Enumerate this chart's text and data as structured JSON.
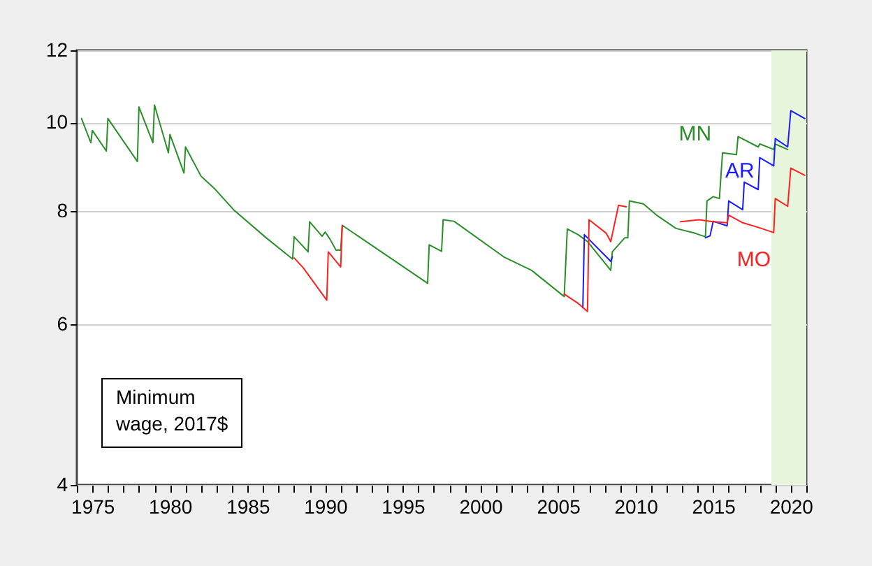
{
  "chart_data": {
    "type": "line",
    "log": "y",
    "grid": "y",
    "xlim": [
      1974,
      2021
    ],
    "ylim": [
      4,
      12
    ],
    "yticks": [
      4,
      6,
      8,
      10,
      12
    ],
    "xticks": [
      {
        "value": 1974,
        "label": null
      },
      1975,
      {
        "value": 1976,
        "label": null
      },
      {
        "value": 1977,
        "label": null
      },
      {
        "value": 1978,
        "label": null
      },
      {
        "value": 1979,
        "label": null
      },
      1980,
      {
        "value": 1981,
        "label": null
      },
      {
        "value": 1982,
        "label": null
      },
      {
        "value": 1983,
        "label": null
      },
      {
        "value": 1984,
        "label": null
      },
      1985,
      {
        "value": 1986,
        "label": null
      },
      {
        "value": 1987,
        "label": null
      },
      {
        "value": 1988,
        "label": null
      },
      {
        "value": 1989,
        "label": null
      },
      1990,
      {
        "value": 1991,
        "label": null
      },
      {
        "value": 1992,
        "label": null
      },
      {
        "value": 1993,
        "label": null
      },
      {
        "value": 1994,
        "label": null
      },
      1995,
      {
        "value": 1996,
        "label": null
      },
      {
        "value": 1997,
        "label": null
      },
      {
        "value": 1998,
        "label": null
      },
      {
        "value": 1999,
        "label": null
      },
      2000,
      {
        "value": 2001,
        "label": null
      },
      {
        "value": 2002,
        "label": null
      },
      {
        "value": 2003,
        "label": null
      },
      {
        "value": 2004,
        "label": null
      },
      2005,
      {
        "value": 2006,
        "label": null
      },
      {
        "value": 2007,
        "label": null
      },
      {
        "value": 2008,
        "label": null
      },
      {
        "value": 2009,
        "label": null
      },
      2010,
      {
        "value": 2011,
        "label": null
      },
      {
        "value": 2012,
        "label": null
      },
      {
        "value": 2013,
        "label": null
      },
      {
        "value": 2014,
        "label": null
      },
      2015,
      {
        "value": 2016,
        "label": null
      },
      {
        "value": 2017,
        "label": null
      },
      {
        "value": 2018,
        "label": null
      },
      {
        "value": 2019,
        "label": null
      },
      2020,
      {
        "value": 2021,
        "label": null
      }
    ],
    "bands": [
      {
        "axis": "x",
        "from": 2018.75,
        "to": 2021,
        "color": "#e6f5dc"
      }
    ],
    "annotations": [
      "Minimum wage, 2017$"
    ],
    "series": [
      {
        "name": "MN",
        "color": "#2a8f2a",
        "x": [
          1974.3,
          1974.9,
          1975.0,
          1975.9,
          1976.0,
          1977.9,
          1978.0,
          1978.9,
          1979.0,
          1979.9,
          1980.0,
          1980.9,
          1981.0,
          1982.0,
          1982.9,
          1984.1,
          1986.2,
          1987.9,
          1988.0,
          1988.9,
          1989.0,
          1989.8,
          1990.0,
          1990.3,
          1990.7,
          1991.0,
          1991.1,
          1996.6,
          1996.7,
          1997.5,
          1997.6,
          1998.3,
          2001.5,
          2003.3,
          2005.4,
          2005.6,
          2006.3,
          2006.9,
          2008.4,
          2008.5,
          2009.3,
          2009.5,
          2009.6,
          2010.5,
          2011.4,
          2012.6,
          2013.8,
          2014.5,
          2014.6,
          2015.0,
          2015.4,
          2015.6,
          2016.5,
          2016.6,
          2017.9,
          2018.0,
          2018.9,
          2019.0,
          2019.8
        ],
        "values": [
          10.1,
          9.5,
          9.8,
          9.3,
          10.1,
          9.06,
          10.4,
          9.5,
          10.45,
          9.26,
          9.7,
          8.8,
          9.4,
          8.73,
          8.45,
          8.02,
          7.47,
          7.08,
          7.49,
          7.21,
          7.78,
          7.5,
          7.58,
          7.45,
          7.24,
          7.24,
          7.71,
          6.66,
          7.34,
          7.22,
          7.82,
          7.79,
          7.12,
          6.88,
          6.44,
          7.64,
          7.53,
          7.4,
          6.88,
          7.21,
          7.47,
          7.47,
          8.2,
          8.14,
          7.9,
          7.65,
          7.56,
          7.49,
          8.2,
          8.29,
          8.25,
          9.26,
          9.22,
          9.65,
          9.4,
          9.47,
          9.34,
          9.47,
          9.34
        ]
      },
      {
        "name": "AR",
        "color": "#1a1aff",
        "x": [
          2006.6,
          2006.7,
          2008.4,
          2008.5,
          2011.5,
          2014.5,
          2014.8,
          2015.0,
          2015.9,
          2016.0,
          2016.9,
          2017.0,
          2017.9,
          2018.0,
          2018.9,
          2019.0,
          2019.8,
          2020.0,
          2020.9
        ],
        "values": [
          6.26,
          7.53,
          7.04,
          7.12,
          null,
          7.47,
          7.51,
          7.79,
          7.7,
          8.2,
          8.02,
          8.6,
          8.44,
          9.15,
          8.96,
          9.6,
          9.4,
          10.3,
          10.1
        ]
      },
      {
        "name": "MO",
        "color": "#ff2020",
        "x": [
          1988.0,
          1988.6,
          1990.1,
          1990.2,
          1991.0,
          1991.1,
          1998.0,
          2005.4,
          2006.3,
          2006.9,
          2007.0,
          2008.1,
          2008.4,
          2008.9,
          2009.4,
          2011.0,
          2012.9,
          2014.1,
          2015.0,
          2015.9,
          2016.0,
          2016.9,
          2017.9,
          2018.9,
          2019.0,
          2019.8,
          2020.0,
          2020.9
        ],
        "values": [
          7.1,
          6.92,
          6.38,
          7.21,
          6.94,
          7.71,
          null,
          6.48,
          6.33,
          6.2,
          7.82,
          7.56,
          7.4,
          8.11,
          8.08,
          null,
          7.78,
          7.82,
          7.78,
          7.76,
          7.91,
          7.76,
          7.67,
          7.57,
          8.25,
          8.09,
          8.91,
          8.75
        ]
      }
    ]
  }
}
